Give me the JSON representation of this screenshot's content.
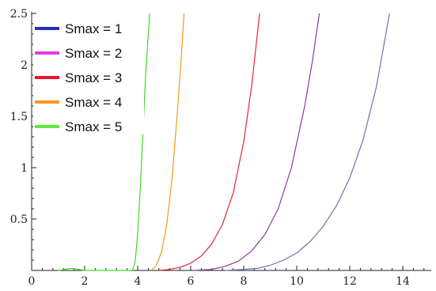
{
  "chart_data": {
    "type": "line",
    "title": "",
    "xlabel": "",
    "ylabel": "",
    "xlim": [
      0,
      15
    ],
    "ylim": [
      0,
      2.5
    ],
    "x_ticks": [
      "0",
      "2",
      "4",
      "6",
      "8",
      "10",
      "12",
      "14"
    ],
    "y_ticks": [
      "0.5",
      "1",
      "1.5",
      "2",
      "2.5"
    ],
    "grid": false,
    "legend_position": "top-left",
    "series": [
      {
        "name": "Smax = 1",
        "legend_color": "#1f2fbf",
        "line_color": "#6a73b0",
        "x": [
          7.3,
          8.0,
          8.5,
          9.0,
          9.5,
          10.0,
          10.5,
          11.0,
          11.5,
          12.0,
          12.5,
          13.0,
          13.5
        ],
        "y": [
          0.0,
          0.01,
          0.02,
          0.05,
          0.1,
          0.17,
          0.28,
          0.43,
          0.63,
          0.9,
          1.27,
          1.78,
          2.5
        ]
      },
      {
        "name": "Smax = 2",
        "legend_color": "#e23ce6",
        "line_color": "#8a3a9e",
        "x": [
          6.1,
          6.8,
          7.3,
          7.8,
          8.3,
          8.8,
          9.3,
          9.8,
          10.3,
          10.6,
          10.85
        ],
        "y": [
          0.0,
          0.01,
          0.04,
          0.09,
          0.19,
          0.35,
          0.6,
          1.0,
          1.6,
          2.05,
          2.5
        ]
      },
      {
        "name": "Smax = 3",
        "legend_color": "#e8132f",
        "line_color": "#e22a3a",
        "x": [
          4.8,
          5.2,
          5.6,
          6.0,
          6.4,
          6.8,
          7.2,
          7.6,
          8.0,
          8.3,
          8.6
        ],
        "y": [
          0.0,
          0.01,
          0.03,
          0.07,
          0.14,
          0.26,
          0.45,
          0.75,
          1.25,
          1.8,
          2.5
        ]
      },
      {
        "name": "Smax = 4",
        "legend_color": "#f39a1b",
        "line_color": "#f39a1b",
        "x": [
          4.5,
          4.7,
          4.9,
          5.1,
          5.3,
          5.5,
          5.65,
          5.75
        ],
        "y": [
          0.0,
          0.05,
          0.18,
          0.45,
          0.9,
          1.55,
          2.1,
          2.5
        ]
      },
      {
        "name": "Smax = 5",
        "legend_color": "#5ee83a",
        "line_color": "#44d62a",
        "x": [
          1.0,
          1.5,
          2.0,
          3.8,
          3.9,
          4.0,
          4.1,
          4.2,
          4.3,
          4.45
        ],
        "y": [
          0.0,
          0.02,
          0.0,
          0.0,
          0.08,
          0.35,
          0.8,
          1.35,
          1.9,
          2.5
        ]
      }
    ]
  }
}
